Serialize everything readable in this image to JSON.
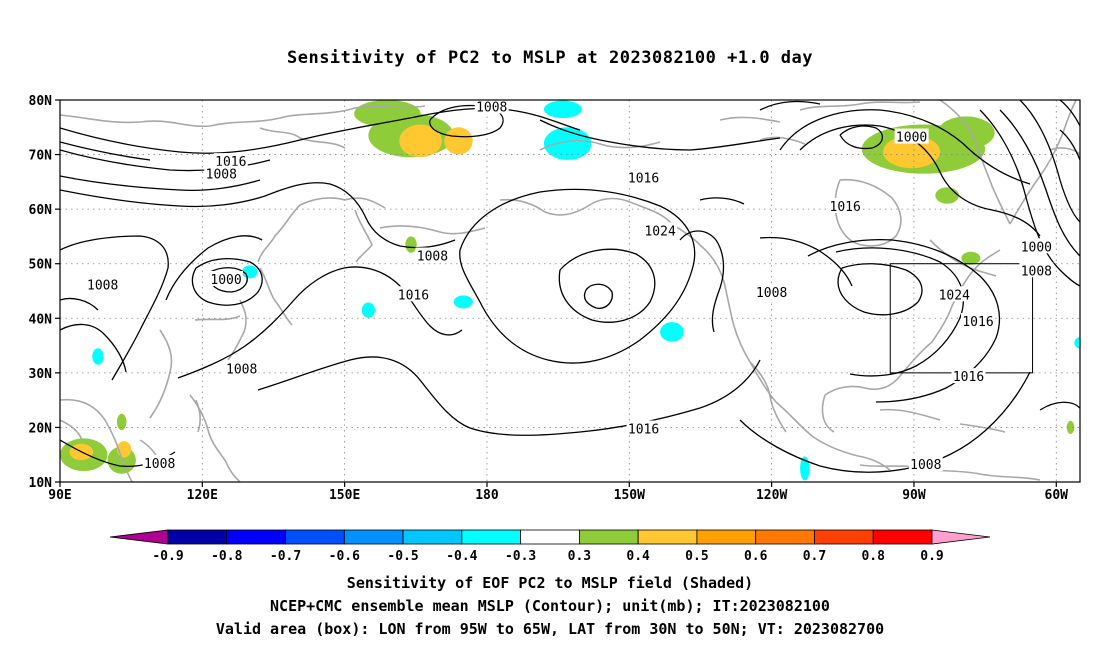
{
  "title": "Sensitivity of PC2 to MSLP at 2023082100 +1.0 day",
  "map": {
    "projection": "lat-lon",
    "lon_range": [
      90,
      305
    ],
    "lat_range": [
      10,
      80
    ],
    "x_ticks": [
      {
        "lon": 90,
        "label": "90E"
      },
      {
        "lon": 120,
        "label": "120E"
      },
      {
        "lon": 150,
        "label": "150E"
      },
      {
        "lon": 180,
        "label": "180"
      },
      {
        "lon": 210,
        "label": "150W"
      },
      {
        "lon": 240,
        "label": "120W"
      },
      {
        "lon": 270,
        "label": "90W"
      },
      {
        "lon": 300,
        "label": "60W"
      }
    ],
    "y_ticks": [
      {
        "lat": 80,
        "label": "80N"
      },
      {
        "lat": 70,
        "label": "70N"
      },
      {
        "lat": 60,
        "label": "60N"
      },
      {
        "lat": 50,
        "label": "50N"
      },
      {
        "lat": 40,
        "label": "40N"
      },
      {
        "lat": 30,
        "label": "30N"
      },
      {
        "lat": 20,
        "label": "20N"
      },
      {
        "lat": 10,
        "label": "10N"
      }
    ],
    "grid": "dotted",
    "valid_box": {
      "lon_min": 265,
      "lon_max": 295,
      "lat_min": 30,
      "lat_max": 50
    },
    "contour_labels": [
      {
        "text": "1008",
        "lon": 181,
        "lat": 78.8
      },
      {
        "text": "1016",
        "lon": 126,
        "lat": 68.8
      },
      {
        "text": "1008",
        "lon": 124,
        "lat": 66.5
      },
      {
        "text": "1008",
        "lon": 99,
        "lat": 46.2
      },
      {
        "text": "1000",
        "lon": 125,
        "lat": 47.2
      },
      {
        "text": "1008",
        "lon": 168.5,
        "lat": 51.5
      },
      {
        "text": "1016",
        "lon": 164.5,
        "lat": 44.4
      },
      {
        "text": "1008",
        "lon": 128.3,
        "lat": 30.8
      },
      {
        "text": "1008",
        "lon": 111,
        "lat": 13.5
      },
      {
        "text": "1016",
        "lon": 213,
        "lat": 65.8
      },
      {
        "text": "1024",
        "lon": 216.5,
        "lat": 56.1
      },
      {
        "text": "1016",
        "lon": 213,
        "lat": 19.8
      },
      {
        "text": "1008",
        "lon": 240,
        "lat": 44.8
      },
      {
        "text": "1016",
        "lon": 255.5,
        "lat": 60.6
      },
      {
        "text": "1000",
        "lon": 269.5,
        "lat": 73.3
      },
      {
        "text": "1000",
        "lon": 295.8,
        "lat": 53.2
      },
      {
        "text": "1008",
        "lon": 295.8,
        "lat": 48.8
      },
      {
        "text": "1024",
        "lon": 278.5,
        "lat": 44.4
      },
      {
        "text": "1016",
        "lon": 283.5,
        "lat": 39.5
      },
      {
        "text": "1016",
        "lon": 281.5,
        "lat": 29.4
      },
      {
        "text": "1008",
        "lon": 272.5,
        "lat": 13.3
      }
    ],
    "shaded_regions": [
      {
        "class": "0.3 to 0.4",
        "lon": 159,
        "lat": 77.5,
        "rlon": 7,
        "rlat": 2.5
      },
      {
        "class": "0.3 to 0.4",
        "lon": 164,
        "lat": 73.5,
        "rlon": 9,
        "rlat": 4
      },
      {
        "class": "0.4 to 0.5",
        "lon": 166,
        "lat": 72.5,
        "rlon": 4.5,
        "rlat": 3
      },
      {
        "class": "0.4 to 0.5",
        "lon": 174,
        "lat": 72.5,
        "rlon": 3,
        "rlat": 2.5
      },
      {
        "class": "-0.4 to -0.3",
        "lon": 197,
        "lat": 72,
        "rlon": 5,
        "rlat": 3
      },
      {
        "class": "-0.4 to -0.3",
        "lon": 196,
        "lat": 78.3,
        "rlon": 4,
        "rlat": 1.6
      },
      {
        "class": "0.3 to 0.4",
        "lon": 272,
        "lat": 71,
        "rlon": 13,
        "rlat": 4.5
      },
      {
        "class": "0.4 to 0.5",
        "lon": 269.5,
        "lat": 70.5,
        "rlon": 6,
        "rlat": 3
      },
      {
        "class": "0.3 to 0.4",
        "lon": 281,
        "lat": 74,
        "rlon": 6,
        "rlat": 3
      },
      {
        "class": "0.3 to 0.4",
        "lon": 277,
        "lat": 62.5,
        "rlon": 2.5,
        "rlat": 1.5
      },
      {
        "class": "0.3 to 0.4",
        "lon": 282,
        "lat": 51,
        "rlon": 2,
        "rlat": 1.2
      },
      {
        "class": "-0.4 to -0.3",
        "lon": 130,
        "lat": 48.5,
        "rlon": 1.6,
        "rlat": 1.2
      },
      {
        "class": "-0.4 to -0.3",
        "lon": 155,
        "lat": 41.5,
        "rlon": 1.4,
        "rlat": 1.4
      },
      {
        "class": "-0.4 to -0.3",
        "lon": 175,
        "lat": 43,
        "rlon": 2,
        "rlat": 1.2
      },
      {
        "class": "-0.4 to -0.3",
        "lon": 219,
        "lat": 37.5,
        "rlon": 2.5,
        "rlat": 1.8
      },
      {
        "class": "-0.4 to -0.3",
        "lon": 98,
        "lat": 33,
        "rlon": 1.2,
        "rlat": 1.5
      },
      {
        "class": "-0.4 to -0.3",
        "lon": 247,
        "lat": 12.5,
        "rlon": 1,
        "rlat": 2.2
      },
      {
        "class": "-0.4 to -0.3",
        "lon": 305,
        "lat": 35.5,
        "rlon": 1.2,
        "rlat": 1
      },
      {
        "class": "0.3 to 0.4",
        "lon": 95,
        "lat": 15,
        "rlon": 5,
        "rlat": 3
      },
      {
        "class": "0.4 to 0.5",
        "lon": 94.5,
        "lat": 15.5,
        "rlon": 2.5,
        "rlat": 1.5
      },
      {
        "class": "0.3 to 0.4",
        "lon": 103,
        "lat": 14,
        "rlon": 3,
        "rlat": 2.5
      },
      {
        "class": "0.4 to 0.5",
        "lon": 103.5,
        "lat": 16,
        "rlon": 1.5,
        "rlat": 1.5
      },
      {
        "class": "0.3 to 0.4",
        "lon": 103,
        "lat": 21,
        "rlon": 1,
        "rlat": 1.5
      },
      {
        "class": "0.3 to 0.4",
        "lon": 164,
        "lat": 53.5,
        "rlon": 1.2,
        "rlat": 1.5
      },
      {
        "class": "0.3 to 0.4",
        "lon": 303,
        "lat": 20,
        "rlon": 0.8,
        "rlat": 1.2
      }
    ]
  },
  "colorbar": {
    "classes": [
      {
        "color": "#b0008f"
      },
      {
        "color": "#0000a8"
      },
      {
        "color": "#0000ff"
      },
      {
        "color": "#0050ff"
      },
      {
        "color": "#0090ff"
      },
      {
        "color": "#00c8ff"
      },
      {
        "color": "#00ffff"
      },
      {
        "color": "#ffffff"
      },
      {
        "color": "#8fcc3a"
      },
      {
        "color": "#ffc830"
      },
      {
        "color": "#ffa000"
      },
      {
        "color": "#ff7800"
      },
      {
        "color": "#ff4000"
      },
      {
        "color": "#ff0000"
      },
      {
        "color": "#ff9ecf"
      }
    ],
    "labels": [
      "-0.9",
      "-0.8",
      "-0.7",
      "-0.6",
      "-0.5",
      "-0.4",
      "-0.3",
      "0.3",
      "0.4",
      "0.5",
      "0.6",
      "0.7",
      "0.8",
      "0.9"
    ]
  },
  "colors": {
    "positive_weak": "#8fcc3a",
    "positive_mid": "#ffc830",
    "negative_weak": "#00ffff",
    "coastline": "#a8a8a8",
    "contour": "#000000"
  },
  "captions": {
    "line1": "Sensitivity of EOF PC2 to MSLP field (Shaded)",
    "line2": "NCEP+CMC ensemble mean MSLP (Contour); unit(mb); IT:2023082100",
    "line3": "Valid area (box): LON from 95W to 65W, LAT from 30N to 50N; VT: 2023082700"
  }
}
